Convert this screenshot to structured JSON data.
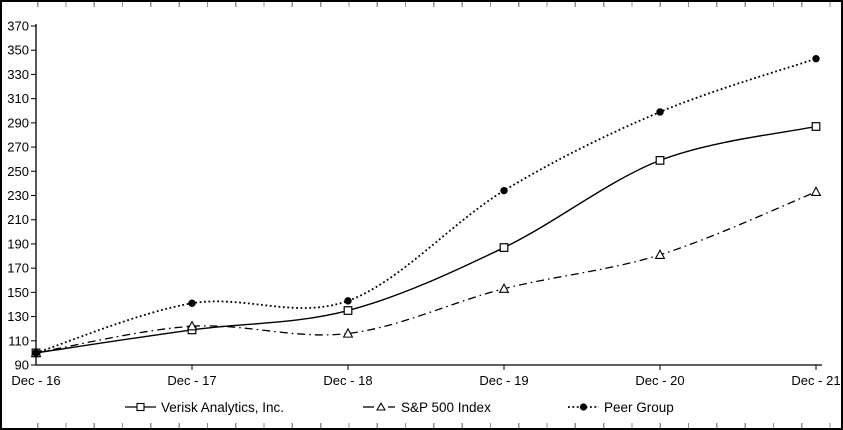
{
  "chart_data": {
    "type": "line",
    "title": "",
    "xlabel": "",
    "ylabel": "",
    "categories": [
      "Dec - 16",
      "Dec - 17",
      "Dec - 18",
      "Dec - 19",
      "Dec - 20",
      "Dec - 21"
    ],
    "series": [
      {
        "name": "Verisk Analytics, Inc.",
        "values": [
          100,
          119,
          135,
          187,
          259,
          287
        ],
        "line_style": "solid",
        "marker": "open-square",
        "color": "#000000"
      },
      {
        "name": "S&P 500 Index",
        "values": [
          100,
          122,
          116,
          153,
          181,
          233
        ],
        "line_style": "dash-dot",
        "marker": "open-triangle",
        "color": "#000000"
      },
      {
        "name": "Peer Group",
        "values": [
          100,
          141,
          143,
          234,
          299,
          343
        ],
        "line_style": "dotted",
        "marker": "filled-circle",
        "color": "#000000"
      }
    ],
    "ylim": [
      90,
      370
    ],
    "ytick_step": 20,
    "grid": false,
    "legend_position": "bottom",
    "smoothed_lines": true,
    "background_color": "#ffffff",
    "axis_color": "#000000"
  }
}
